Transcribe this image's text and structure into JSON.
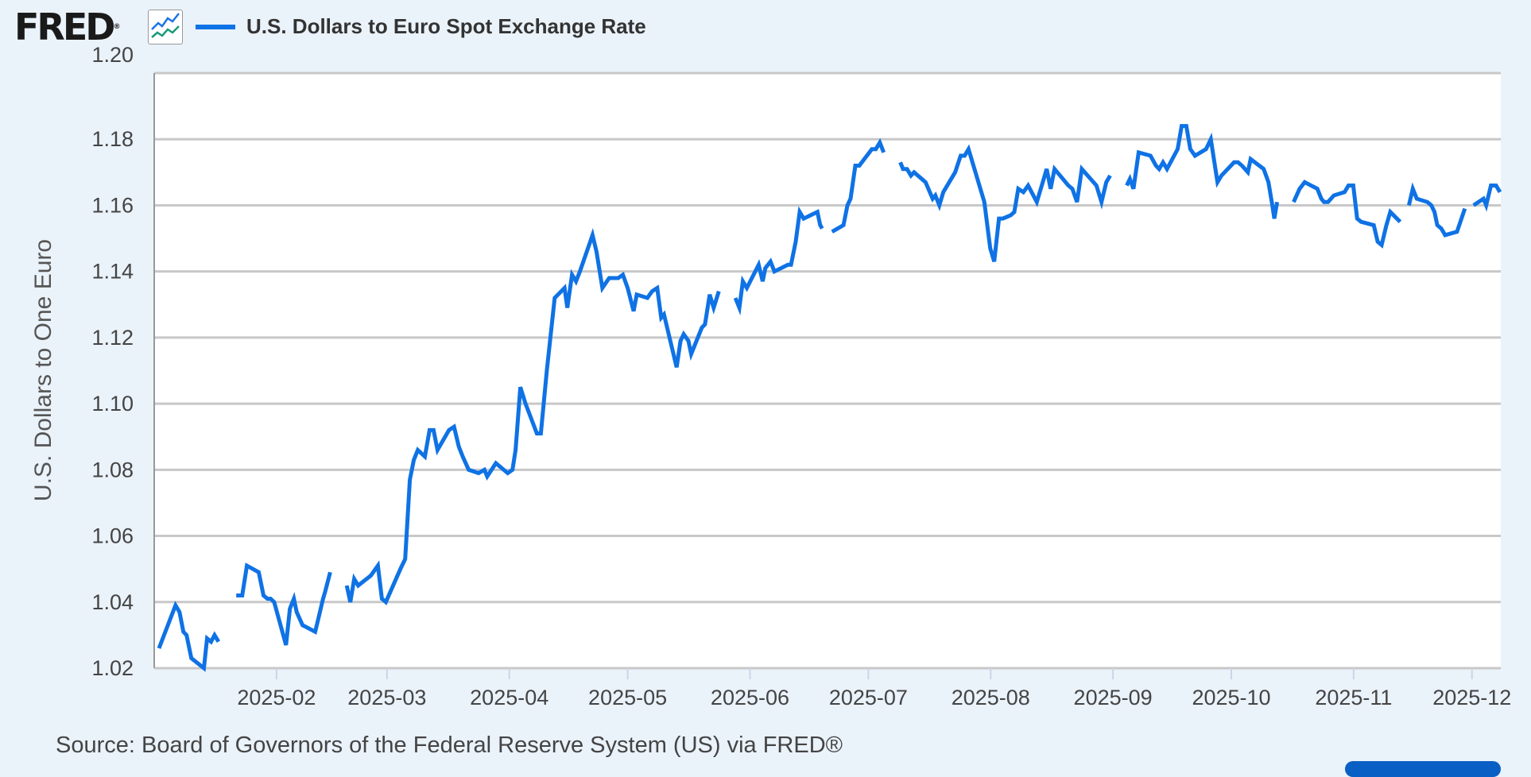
{
  "header": {
    "logo_text": "FRED",
    "logo_reg": "®",
    "legend_label": "U.S. Dollars to Euro Spot Exchange Rate"
  },
  "footer": {
    "source": "Source: Board of Governors of the Federal Reserve System (US) via FRED®"
  },
  "colors": {
    "series": "#0f72e5",
    "grid": "#c8c8c8",
    "background": "#eaf2fa"
  },
  "chart_data": {
    "type": "line",
    "title": "U.S. Dollars to Euro Spot Exchange Rate",
    "xlabel": "",
    "ylabel": "U.S. Dollars to One Euro",
    "x_unit": "days since 2025-01-01",
    "xlim": [
      0,
      341.3
    ],
    "ylim": [
      1.02,
      1.2
    ],
    "yticks": [
      "1.02",
      "1.04",
      "1.06",
      "1.08",
      "1.10",
      "1.12",
      "1.14",
      "1.16",
      "1.18",
      "1.20"
    ],
    "xticks": [
      {
        "label": "2025-02",
        "day": 31
      },
      {
        "label": "2025-03",
        "day": 59
      },
      {
        "label": "2025-04",
        "day": 90
      },
      {
        "label": "2025-05",
        "day": 120
      },
      {
        "label": "2025-06",
        "day": 151
      },
      {
        "label": "2025-07",
        "day": 181
      },
      {
        "label": "2025-08",
        "day": 212
      },
      {
        "label": "2025-09",
        "day": 243
      },
      {
        "label": "2025-10",
        "day": 273
      },
      {
        "label": "2025-11",
        "day": 304
      },
      {
        "label": "2025-12",
        "day": 334
      }
    ],
    "grid": true,
    "legend": "top-left",
    "series": [
      {
        "name": "U.S. Dollars to Euro Spot Exchange Rate",
        "segments": [
          [
            [
              1.2,
              1.026
            ],
            [
              5.4,
              1.039
            ],
            [
              6.4,
              1.037
            ],
            [
              7.4,
              1.031
            ],
            [
              8.2,
              1.03
            ],
            [
              9.4,
              1.023
            ],
            [
              12.6,
              1.02
            ],
            [
              13.4,
              1.029
            ],
            [
              14.4,
              1.028
            ],
            [
              15.3,
              1.03
            ],
            [
              16.3,
              1.028
            ]
          ],
          [
            [
              20.8,
              1.042
            ],
            [
              22.3,
              1.042
            ],
            [
              23.5,
              1.051
            ],
            [
              26.5,
              1.049
            ],
            [
              27.7,
              1.042
            ],
            [
              28.7,
              1.041
            ],
            [
              29.5,
              1.041
            ],
            [
              30.4,
              1.04
            ],
            [
              33.4,
              1.027
            ],
            [
              34.4,
              1.038
            ],
            [
              35.4,
              1.041
            ],
            [
              36.1,
              1.037
            ],
            [
              37.6,
              1.033
            ],
            [
              40.8,
              1.031
            ],
            [
              41.8,
              1.036
            ],
            [
              42.8,
              1.041
            ],
            [
              43.3,
              1.043
            ],
            [
              44.6,
              1.049
            ]
          ],
          [
            [
              48.8,
              1.045
            ],
            [
              49.7,
              1.04
            ],
            [
              50.7,
              1.047
            ],
            [
              51.7,
              1.045
            ],
            [
              54.9,
              1.048
            ],
            [
              56.7,
              1.051
            ],
            [
              57.7,
              1.041
            ],
            [
              58.7,
              1.04
            ],
            [
              62.4,
              1.05
            ],
            [
              63.6,
              1.053
            ],
            [
              64.8,
              1.077
            ],
            [
              65.8,
              1.083
            ],
            [
              66.8,
              1.086
            ],
            [
              68.6,
              1.084
            ],
            [
              69.8,
              1.092
            ],
            [
              70.8,
              1.092
            ],
            [
              71.8,
              1.086
            ],
            [
              74.7,
              1.092
            ],
            [
              76.0,
              1.093
            ],
            [
              77.2,
              1.087
            ],
            [
              78.2,
              1.084
            ],
            [
              79.7,
              1.08
            ],
            [
              82.2,
              1.079
            ],
            [
              83.7,
              1.08
            ],
            [
              84.4,
              1.078
            ],
            [
              86.6,
              1.082
            ],
            [
              89.6,
              1.079
            ],
            [
              90.8,
              1.08
            ],
            [
              91.6,
              1.086
            ],
            [
              92.8,
              1.105
            ],
            [
              94.1,
              1.1
            ],
            [
              97.0,
              1.091
            ],
            [
              98.0,
              1.091
            ],
            [
              99.5,
              1.11
            ],
            [
              101.5,
              1.132
            ],
            [
              104.0,
              1.135
            ],
            [
              104.7,
              1.129
            ],
            [
              105.9,
              1.139
            ],
            [
              106.9,
              1.137
            ],
            [
              107.9,
              1.14
            ],
            [
              111.1,
              1.151
            ],
            [
              112.1,
              1.146
            ],
            [
              113.6,
              1.135
            ],
            [
              115.3,
              1.138
            ],
            [
              117.6,
              1.138
            ],
            [
              118.8,
              1.139
            ],
            [
              120.0,
              1.135
            ],
            [
              121.5,
              1.128
            ],
            [
              122.3,
              1.133
            ],
            [
              125.0,
              1.132
            ],
            [
              126.2,
              1.134
            ],
            [
              127.5,
              1.135
            ],
            [
              128.5,
              1.126
            ],
            [
              129.2,
              1.127
            ],
            [
              132.4,
              1.111
            ],
            [
              133.4,
              1.119
            ],
            [
              134.2,
              1.121
            ],
            [
              135.4,
              1.119
            ],
            [
              136.1,
              1.115
            ],
            [
              138.8,
              1.123
            ],
            [
              139.6,
              1.124
            ],
            [
              140.8,
              1.133
            ],
            [
              141.8,
              1.129
            ],
            [
              143.1,
              1.134
            ]
          ],
          [
            [
              147.3,
              1.132
            ],
            [
              148.3,
              1.129
            ],
            [
              149.2,
              1.137
            ],
            [
              150.2,
              1.135
            ],
            [
              153.2,
              1.142
            ],
            [
              154.2,
              1.137
            ],
            [
              154.9,
              1.141
            ],
            [
              156.2,
              1.143
            ],
            [
              157.2,
              1.14
            ],
            [
              160.6,
              1.142
            ],
            [
              161.4,
              1.142
            ],
            [
              162.6,
              1.149
            ],
            [
              163.6,
              1.158
            ],
            [
              164.6,
              1.156
            ],
            [
              168.1,
              1.158
            ],
            [
              168.8,
              1.154
            ],
            [
              169.3,
              1.153
            ]
          ],
          [
            [
              171.8,
              1.152
            ],
            [
              174.7,
              1.154
            ],
            [
              175.7,
              1.16
            ],
            [
              176.5,
              1.162
            ],
            [
              177.7,
              1.172
            ],
            [
              178.7,
              1.172
            ],
            [
              181.9,
              1.177
            ],
            [
              182.9,
              1.177
            ],
            [
              183.9,
              1.179
            ],
            [
              184.9,
              1.176
            ]
          ],
          [
            [
              189.1,
              1.173
            ],
            [
              189.8,
              1.171
            ],
            [
              190.8,
              1.171
            ],
            [
              191.8,
              1.169
            ],
            [
              192.6,
              1.17
            ],
            [
              195.5,
              1.167
            ],
            [
              197.3,
              1.162
            ],
            [
              198.0,
              1.163
            ],
            [
              199.0,
              1.16
            ],
            [
              200.0,
              1.164
            ],
            [
              203.0,
              1.17
            ],
            [
              204.4,
              1.175
            ],
            [
              205.4,
              1.175
            ],
            [
              206.4,
              1.177
            ],
            [
              210.4,
              1.161
            ],
            [
              211.9,
              1.147
            ],
            [
              212.9,
              1.143
            ],
            [
              214.1,
              1.156
            ],
            [
              215.1,
              1.156
            ],
            [
              217.1,
              1.157
            ],
            [
              218.0,
              1.158
            ],
            [
              219.0,
              1.165
            ],
            [
              220.3,
              1.164
            ],
            [
              221.5,
              1.166
            ],
            [
              223.7,
              1.161
            ],
            [
              225.2,
              1.167
            ],
            [
              226.2,
              1.171
            ],
            [
              227.2,
              1.165
            ],
            [
              228.2,
              1.171
            ],
            [
              231.7,
              1.166
            ],
            [
              232.7,
              1.165
            ],
            [
              233.9,
              1.161
            ],
            [
              235.1,
              1.171
            ],
            [
              238.8,
              1.166
            ],
            [
              240.1,
              1.161
            ],
            [
              241.3,
              1.167
            ],
            [
              242.3,
              1.169
            ]
          ],
          [
            [
              246.5,
              1.166
            ],
            [
              247.3,
              1.168
            ],
            [
              248.2,
              1.165
            ],
            [
              249.5,
              1.176
            ],
            [
              252.5,
              1.175
            ],
            [
              253.9,
              1.172
            ],
            [
              254.7,
              1.171
            ],
            [
              255.7,
              1.173
            ],
            [
              256.7,
              1.171
            ],
            [
              259.4,
              1.177
            ],
            [
              260.4,
              1.184
            ],
            [
              261.6,
              1.184
            ],
            [
              262.6,
              1.177
            ],
            [
              263.8,
              1.175
            ],
            [
              266.6,
              1.177
            ],
            [
              267.8,
              1.18
            ],
            [
              269.5,
              1.167
            ],
            [
              270.5,
              1.169
            ],
            [
              273.7,
              1.173
            ],
            [
              274.7,
              1.173
            ],
            [
              275.7,
              1.172
            ],
            [
              277.2,
              1.17
            ],
            [
              277.9,
              1.174
            ],
            [
              281.2,
              1.171
            ],
            [
              282.4,
              1.167
            ],
            [
              283.4,
              1.16
            ],
            [
              283.9,
              1.156
            ],
            [
              284.6,
              1.161
            ]
          ],
          [
            [
              288.8,
              1.161
            ],
            [
              290.3,
              1.165
            ],
            [
              291.6,
              1.167
            ],
            [
              294.8,
              1.165
            ],
            [
              295.8,
              1.162
            ],
            [
              296.5,
              1.161
            ],
            [
              297.5,
              1.161
            ],
            [
              299.0,
              1.163
            ],
            [
              301.7,
              1.164
            ],
            [
              302.7,
              1.166
            ],
            [
              303.9,
              1.166
            ],
            [
              304.9,
              1.156
            ],
            [
              305.9,
              1.155
            ],
            [
              309.1,
              1.154
            ],
            [
              310.1,
              1.149
            ],
            [
              311.1,
              1.148
            ],
            [
              312.3,
              1.154
            ],
            [
              313.3,
              1.158
            ],
            [
              315.8,
              1.155
            ]
          ],
          [
            [
              318.0,
              1.16
            ],
            [
              319.0,
              1.165
            ],
            [
              320.0,
              1.162
            ],
            [
              322.7,
              1.161
            ],
            [
              323.7,
              1.16
            ],
            [
              324.5,
              1.158
            ],
            [
              325.2,
              1.154
            ],
            [
              326.2,
              1.153
            ],
            [
              327.2,
              1.151
            ],
            [
              330.2,
              1.152
            ],
            [
              332.2,
              1.159
            ]
          ],
          [
            [
              334.4,
              1.16
            ],
            [
              336.9,
              1.162
            ],
            [
              337.6,
              1.16
            ],
            [
              338.8,
              1.166
            ],
            [
              340.1,
              1.166
            ],
            [
              341.1,
              1.164
            ]
          ]
        ]
      }
    ]
  }
}
